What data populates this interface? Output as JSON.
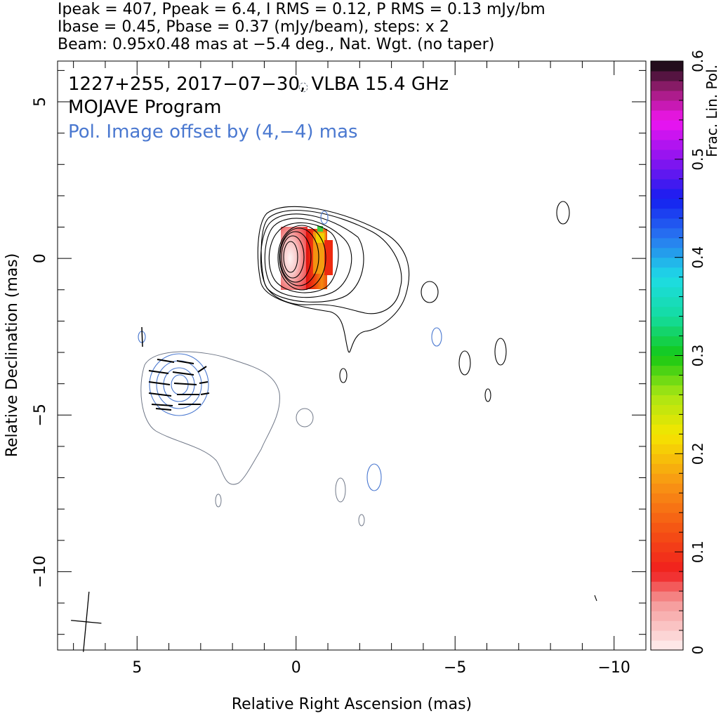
{
  "header": {
    "line1": "Ipeak = 407, Ppeak = 6.4, I RMS = 0.12, P RMS = 0.13 mJy/bm",
    "line2": "Ibase = 0.45, Pbase = 0.37 (mJy/beam), steps: x 2",
    "line3": "Beam: 0.95x0.48 mas at −5.4 deg., Nat. Wgt. (no taper)"
  },
  "chart_data": {
    "type": "heatmap",
    "title": "1227+255, 2017−07−30, VLBA 15.4 GHz",
    "subtitle": "MOJAVE Program",
    "annotation": "Pol. Image offset by (4,−4) mas",
    "xlabel": "Relative Right Ascension (mas)",
    "ylabel": "Relative Declination (mas)",
    "xlim": [
      7.5,
      -11
    ],
    "ylim": [
      -12.5,
      6.3
    ],
    "xticks": [
      5,
      0,
      -5,
      -10
    ],
    "xtick_labels": [
      "5",
      "0",
      "−5",
      "−10"
    ],
    "yticks": [
      5,
      0,
      -5,
      -10
    ],
    "ytick_labels": [
      "5",
      "0",
      "−5",
      "−10"
    ],
    "colorbar": {
      "label": "Frac. Lin. Pol.",
      "range": [
        0,
        0.6
      ],
      "ticks": [
        0,
        0.1,
        0.2,
        0.3,
        0.4,
        0.5,
        0.6
      ],
      "tick_labels": [
        "0",
        "0.1",
        "0.2",
        "0.3",
        "0.4",
        "0.5",
        "0.6"
      ]
    },
    "core": {
      "x": 0,
      "y": 0,
      "fracpol_range": [
        0.0,
        0.25
      ]
    },
    "pol_offset": [
      4,
      -4
    ],
    "beam": {
      "major_mas": 0.95,
      "minor_mas": 0.48,
      "pa_deg": -5.4
    },
    "colors": {
      "contours": "#000000",
      "pol_contours": "#4a78d0",
      "fit_contours": "#707888"
    }
  }
}
